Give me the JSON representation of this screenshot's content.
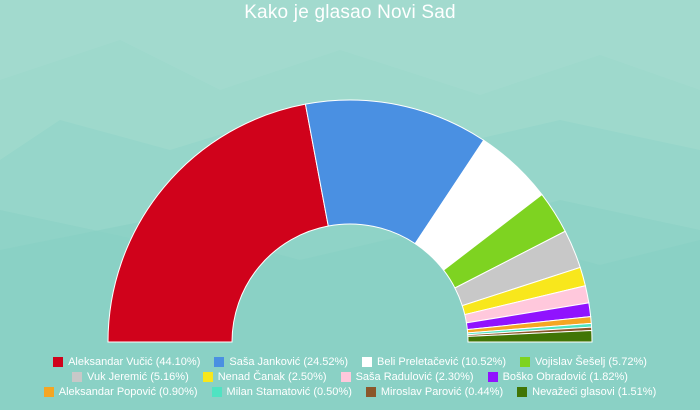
{
  "chart_data": {
    "type": "pie",
    "variant": "semi-donut",
    "title": "Kako je glasao Novi Sad",
    "legend_position": "bottom",
    "background": "#8fd3c7",
    "slices": [
      {
        "label": "Aleksandar Vučić (44.10%)",
        "value": 44.1,
        "color": "#d0021b"
      },
      {
        "label": "Saša Janković (24.52%)",
        "value": 24.52,
        "color": "#4a90e2"
      },
      {
        "label": "Beli Preletačević (10.52%)",
        "value": 10.52,
        "color": "#ffffff"
      },
      {
        "label": "Vojislav Šešelj (5.72%)",
        "value": 5.72,
        "color": "#7ed321"
      },
      {
        "label": "Vuk Jeremić (5.16%)",
        "value": 5.16,
        "color": "#c8c8c8"
      },
      {
        "label": "Nenad Čanak (2.50%)",
        "value": 2.5,
        "color": "#f8e71c"
      },
      {
        "label": "Saša Radulović (2.30%)",
        "value": 2.3,
        "color": "#ffc8dc"
      },
      {
        "label": "Boško Obradović (1.82%)",
        "value": 1.82,
        "color": "#9013fe"
      },
      {
        "label": "Aleksandar Popović (0.90%)",
        "value": 0.9,
        "color": "#f5a623"
      },
      {
        "label": "Milan Stamatović (0.50%)",
        "value": 0.5,
        "color": "#50e3c2"
      },
      {
        "label": "Miroslav Parović (0.44%)",
        "value": 0.44,
        "color": "#8b572a"
      },
      {
        "label": "Nevažeći glasovi (1.51%)",
        "value": 1.51,
        "color": "#417505"
      }
    ]
  }
}
